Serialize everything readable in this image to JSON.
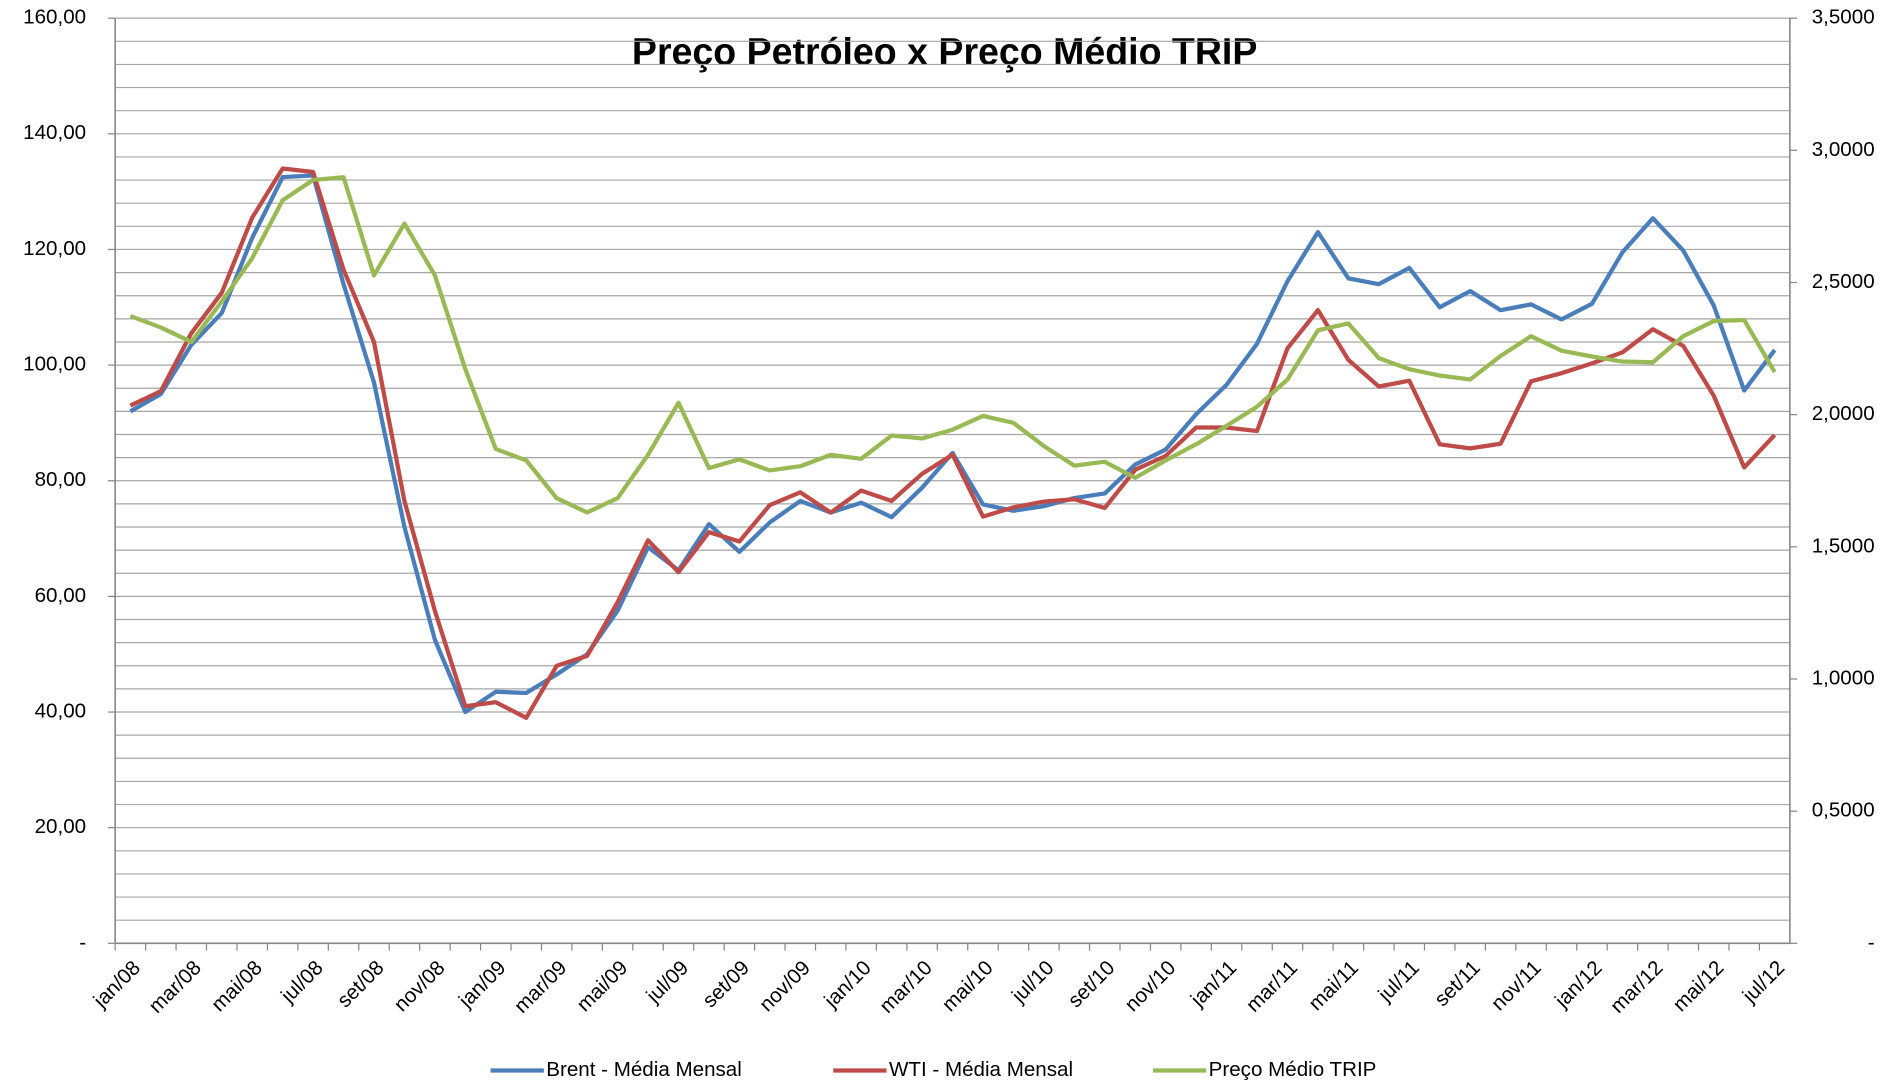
{
  "chart_data": {
    "type": "line",
    "title": "Preço Petróleo x Preço Médio TRIP",
    "categories": [
      "jan/08",
      null,
      "mar/08",
      null,
      "mai/08",
      null,
      "jul/08",
      null,
      "set/08",
      null,
      "nov/08",
      null,
      "jan/09",
      null,
      "mar/09",
      null,
      "mai/09",
      null,
      "jul/09",
      null,
      "set/09",
      null,
      "nov/09",
      null,
      "jan/10",
      null,
      "mar/10",
      null,
      "mai/10",
      null,
      "jul/10",
      null,
      "set/10",
      null,
      "nov/10",
      null,
      "jan/11",
      null,
      "mar/11",
      null,
      "mai/11",
      null,
      "jul/11",
      null,
      "set/11",
      null,
      "nov/11",
      null,
      "jan/12",
      null,
      "mar/12",
      null,
      "mai/12",
      null,
      "jul/12"
    ],
    "series": [
      {
        "name": "Brent - Média Mensal",
        "color": "#4a7ebb",
        "values": [
          92,
          95,
          103.5,
          109,
          122,
          132.5,
          132.8,
          114,
          97,
          72,
          52.5,
          40,
          43.5,
          43.3,
          46.5,
          50,
          57.5,
          68.5,
          64.5,
          72.5,
          67.7,
          72.8,
          76.5,
          74.5,
          76.2,
          73.7,
          78.8,
          84.8,
          75.9,
          74.8,
          75.6,
          77,
          77.8,
          82.8,
          85.4,
          91.5,
          96.6,
          103.7,
          114.5,
          123,
          115,
          114,
          116.8,
          110,
          112.8,
          109.5,
          110.5,
          107.9,
          110.6,
          119.5,
          125.4,
          119.8,
          110.3,
          95.6,
          102.6
        ]
      },
      {
        "name": "WTI - Média Mensal",
        "color": "#be4b48",
        "values": [
          93,
          95.5,
          105.5,
          112.5,
          125.5,
          134,
          133.4,
          116.5,
          104,
          76.5,
          57.5,
          41,
          41.7,
          39,
          48,
          49.7,
          59,
          69.7,
          64.2,
          71.1,
          69.5,
          75.8,
          78,
          74.5,
          78.3,
          76.5,
          81.2,
          84.5,
          73.8,
          75.4,
          76.4,
          76.8,
          75.3,
          81.9,
          84.3,
          89.2,
          89.2,
          88.6,
          102.9,
          109.5,
          100.9,
          96.3,
          97.3,
          86.3,
          85.6,
          86.4,
          97.2,
          98.6,
          100.3,
          102.2,
          106.2,
          103.3,
          94.7,
          82.3,
          87.9
        ]
      },
      {
        "name": "Preço Médio TRIP",
        "color": "#98b954",
        "axis": "y2",
        "values": [
          2.373,
          2.33,
          2.275,
          2.428,
          2.592,
          2.811,
          2.888,
          2.898,
          2.527,
          2.723,
          2.527,
          2.172,
          1.87,
          1.827,
          1.684,
          1.63,
          1.684,
          1.848,
          2.045,
          1.798,
          1.831,
          1.789,
          1.805,
          1.848,
          1.833,
          1.921,
          1.91,
          1.943,
          1.995,
          1.969,
          1.881,
          1.807,
          1.822,
          1.761,
          1.827,
          1.888,
          1.958,
          2.03,
          2.133,
          2.319,
          2.345,
          2.214,
          2.172,
          2.148,
          2.133,
          2.222,
          2.297,
          2.242,
          2.22,
          2.201,
          2.198,
          2.297,
          2.354,
          2.358,
          2.161
        ]
      }
    ],
    "ylim": [
      0,
      160
    ],
    "yticks": [
      {
        "value": 0,
        "label": "-"
      },
      {
        "value": 20,
        "label": "20,00"
      },
      {
        "value": 40,
        "label": "40,00"
      },
      {
        "value": 60,
        "label": "60,00"
      },
      {
        "value": 80,
        "label": "80,00"
      },
      {
        "value": 100,
        "label": "100,00"
      },
      {
        "value": 120,
        "label": "120,00"
      },
      {
        "value": 140,
        "label": "140,00"
      },
      {
        "value": 160,
        "label": "160,00"
      }
    ],
    "y2lim": [
      0,
      3.5
    ],
    "y2ticks": [
      {
        "value": 0,
        "label": "-"
      },
      {
        "value": 0.5,
        "label": "0,5000"
      },
      {
        "value": 1,
        "label": "1,0000"
      },
      {
        "value": 1.5,
        "label": "1,5000"
      },
      {
        "value": 2,
        "label": "2,0000"
      },
      {
        "value": 2.5,
        "label": "2,5000"
      },
      {
        "value": 3,
        "label": "3,0000"
      },
      {
        "value": 3.5,
        "label": "3,5000"
      }
    ],
    "gridlines": [
      0,
      4,
      8,
      12,
      16,
      20,
      24,
      28,
      32,
      36,
      40,
      44,
      48,
      52,
      56,
      60,
      64,
      68,
      72,
      76,
      80,
      84,
      88,
      92,
      96,
      100,
      104,
      108,
      112,
      116,
      120,
      124,
      128,
      132,
      136,
      140,
      144,
      148,
      152,
      156,
      160
    ],
    "grid": true,
    "legend": "bottom"
  }
}
